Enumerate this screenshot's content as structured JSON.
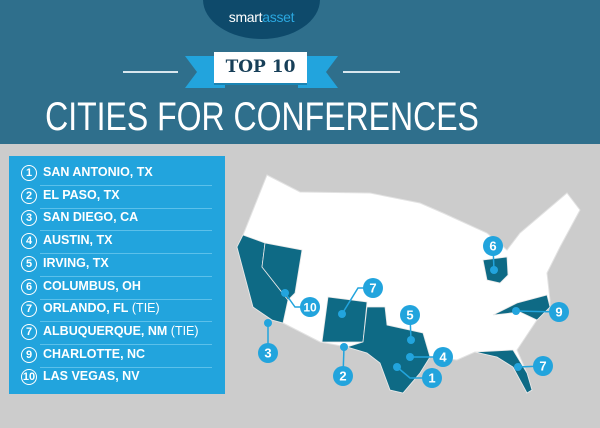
{
  "header": {
    "logo": {
      "part1": "smart",
      "part2": "asset"
    },
    "badge": "TOP 10",
    "title": "CITIES FOR CONFERENCES"
  },
  "colors": {
    "header_bg": "#2f6f8c",
    "list_bg": "#22a4dd",
    "highlight_state": "#0e6a85",
    "marker": "#22a4dd",
    "background": "#cccccc"
  },
  "rankings": [
    {
      "rank": "1",
      "city": "SAN ANTONIO, TX",
      "tie": ""
    },
    {
      "rank": "2",
      "city": "EL PASO, TX",
      "tie": ""
    },
    {
      "rank": "3",
      "city": "SAN DIEGO, CA",
      "tie": ""
    },
    {
      "rank": "4",
      "city": "AUSTIN, TX",
      "tie": ""
    },
    {
      "rank": "5",
      "city": "IRVING, TX",
      "tie": ""
    },
    {
      "rank": "6",
      "city": "COLUMBUS, OH",
      "tie": ""
    },
    {
      "rank": "7",
      "city": "ORLANDO, FL",
      "tie": " (TIE)"
    },
    {
      "rank": "7",
      "city": "ALBUQUERQUE, NM",
      "tie": " (TIE)"
    },
    {
      "rank": "9",
      "city": "CHARLOTTE, NC",
      "tie": ""
    },
    {
      "rank": "10",
      "city": "LAS VEGAS, NV",
      "tie": ""
    }
  ],
  "map": {
    "highlighted_states": [
      "CA",
      "NV",
      "NM",
      "TX",
      "OH",
      "NC",
      "FL"
    ],
    "markers": [
      "1",
      "2",
      "3",
      "4",
      "5",
      "6",
      "7",
      "7",
      "9",
      "10"
    ]
  }
}
